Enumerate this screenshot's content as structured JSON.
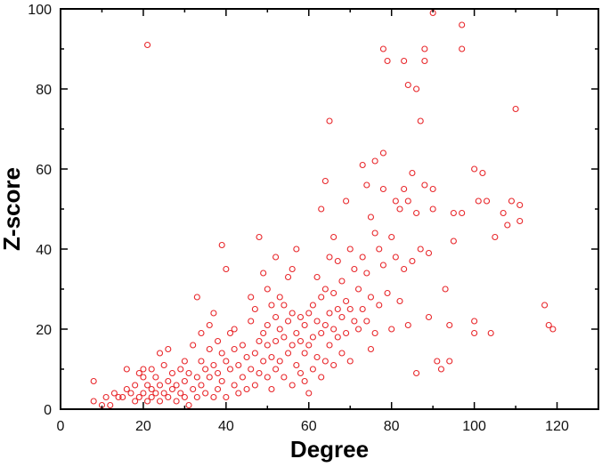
{
  "chart_data": {
    "type": "scatter",
    "title": "",
    "xlabel": "Degree",
    "ylabel": "Z-score",
    "xlim": [
      0,
      130
    ],
    "ylim": [
      0,
      100
    ],
    "xticks": [
      0,
      20,
      40,
      60,
      80,
      100,
      120
    ],
    "yticks": [
      0,
      20,
      40,
      60,
      80,
      100
    ],
    "xtick_labels": [
      "0",
      "20",
      "40",
      "60",
      "80",
      "100",
      "120"
    ],
    "ytick_labels": [
      "0",
      "20",
      "40",
      "60",
      "80",
      "100"
    ],
    "grid": false,
    "legend": "none",
    "marker": "open-circle",
    "color": "#e8262a",
    "points": [
      [
        8,
        7
      ],
      [
        8,
        2
      ],
      [
        10,
        1
      ],
      [
        11,
        3
      ],
      [
        12,
        1
      ],
      [
        13,
        4
      ],
      [
        14,
        3
      ],
      [
        15,
        3
      ],
      [
        16,
        5
      ],
      [
        16,
        10
      ],
      [
        17,
        4
      ],
      [
        18,
        6
      ],
      [
        18,
        2
      ],
      [
        19,
        9
      ],
      [
        19,
        3
      ],
      [
        20,
        10
      ],
      [
        20,
        8
      ],
      [
        20,
        4
      ],
      [
        21,
        6
      ],
      [
        21,
        2
      ],
      [
        21,
        91
      ],
      [
        22,
        10
      ],
      [
        22,
        5
      ],
      [
        22,
        3
      ],
      [
        23,
        8
      ],
      [
        23,
        4
      ],
      [
        24,
        14
      ],
      [
        24,
        6
      ],
      [
        24,
        2
      ],
      [
        25,
        11
      ],
      [
        25,
        4
      ],
      [
        26,
        15
      ],
      [
        26,
        7
      ],
      [
        26,
        3
      ],
      [
        27,
        9
      ],
      [
        27,
        5
      ],
      [
        28,
        6
      ],
      [
        28,
        2
      ],
      [
        29,
        10
      ],
      [
        29,
        4
      ],
      [
        30,
        12
      ],
      [
        30,
        7
      ],
      [
        30,
        3
      ],
      [
        31,
        9
      ],
      [
        31,
        1
      ],
      [
        32,
        16
      ],
      [
        32,
        5
      ],
      [
        33,
        28
      ],
      [
        33,
        8
      ],
      [
        33,
        3
      ],
      [
        34,
        19
      ],
      [
        34,
        12
      ],
      [
        34,
        6
      ],
      [
        35,
        10
      ],
      [
        35,
        4
      ],
      [
        36,
        21
      ],
      [
        36,
        15
      ],
      [
        36,
        8
      ],
      [
        37,
        24
      ],
      [
        37,
        11
      ],
      [
        37,
        3
      ],
      [
        38,
        17
      ],
      [
        38,
        9
      ],
      [
        38,
        5
      ],
      [
        39,
        41
      ],
      [
        39,
        14
      ],
      [
        39,
        7
      ],
      [
        40,
        35
      ],
      [
        40,
        12
      ],
      [
        40,
        3
      ],
      [
        41,
        19
      ],
      [
        41,
        10
      ],
      [
        42,
        20
      ],
      [
        42,
        15
      ],
      [
        42,
        6
      ],
      [
        43,
        11
      ],
      [
        43,
        4
      ],
      [
        44,
        16
      ],
      [
        44,
        8
      ],
      [
        45,
        13
      ],
      [
        45,
        5
      ],
      [
        46,
        28
      ],
      [
        46,
        22
      ],
      [
        46,
        10
      ],
      [
        47,
        25
      ],
      [
        47,
        14
      ],
      [
        47,
        6
      ],
      [
        48,
        43
      ],
      [
        48,
        17
      ],
      [
        48,
        9
      ],
      [
        49,
        34
      ],
      [
        49,
        19
      ],
      [
        49,
        12
      ],
      [
        50,
        30
      ],
      [
        50,
        21
      ],
      [
        50,
        16
      ],
      [
        50,
        8
      ],
      [
        51,
        26
      ],
      [
        51,
        13
      ],
      [
        51,
        5
      ],
      [
        52,
        38
      ],
      [
        52,
        23
      ],
      [
        52,
        17
      ],
      [
        52,
        10
      ],
      [
        53,
        28
      ],
      [
        53,
        20
      ],
      [
        53,
        12
      ],
      [
        54,
        26
      ],
      [
        54,
        18
      ],
      [
        54,
        8
      ],
      [
        55,
        33
      ],
      [
        55,
        22
      ],
      [
        55,
        14
      ],
      [
        56,
        35
      ],
      [
        56,
        24
      ],
      [
        56,
        16
      ],
      [
        56,
        6
      ],
      [
        57,
        40
      ],
      [
        57,
        19
      ],
      [
        57,
        11
      ],
      [
        58,
        23
      ],
      [
        58,
        17
      ],
      [
        58,
        9
      ],
      [
        59,
        21
      ],
      [
        59,
        14
      ],
      [
        59,
        7
      ],
      [
        60,
        24
      ],
      [
        60,
        16
      ],
      [
        60,
        4
      ],
      [
        61,
        26
      ],
      [
        61,
        18
      ],
      [
        61,
        10
      ],
      [
        62,
        33
      ],
      [
        62,
        22
      ],
      [
        62,
        13
      ],
      [
        63,
        50
      ],
      [
        63,
        28
      ],
      [
        63,
        19
      ],
      [
        63,
        8
      ],
      [
        64,
        57
      ],
      [
        64,
        30
      ],
      [
        64,
        21
      ],
      [
        64,
        12
      ],
      [
        65,
        72
      ],
      [
        65,
        38
      ],
      [
        65,
        24
      ],
      [
        65,
        16
      ],
      [
        66,
        43
      ],
      [
        66,
        29
      ],
      [
        66,
        20
      ],
      [
        66,
        11
      ],
      [
        67,
        37
      ],
      [
        67,
        25
      ],
      [
        67,
        18
      ],
      [
        68,
        32
      ],
      [
        68,
        23
      ],
      [
        68,
        14
      ],
      [
        69,
        52
      ],
      [
        69,
        27
      ],
      [
        69,
        19
      ],
      [
        70,
        40
      ],
      [
        70,
        25
      ],
      [
        70,
        12
      ],
      [
        71,
        35
      ],
      [
        71,
        22
      ],
      [
        72,
        30
      ],
      [
        72,
        20
      ],
      [
        73,
        61
      ],
      [
        73,
        38
      ],
      [
        73,
        25
      ],
      [
        74,
        56
      ],
      [
        74,
        34
      ],
      [
        74,
        22
      ],
      [
        75,
        48
      ],
      [
        75,
        28
      ],
      [
        75,
        15
      ],
      [
        76,
        62
      ],
      [
        76,
        44
      ],
      [
        76,
        19
      ],
      [
        77,
        40
      ],
      [
        77,
        26
      ],
      [
        78,
        90
      ],
      [
        78,
        64
      ],
      [
        78,
        55
      ],
      [
        78,
        36
      ],
      [
        79,
        87
      ],
      [
        79,
        29
      ],
      [
        80,
        43
      ],
      [
        80,
        20
      ],
      [
        81,
        52
      ],
      [
        81,
        38
      ],
      [
        82,
        50
      ],
      [
        82,
        27
      ],
      [
        83,
        87
      ],
      [
        83,
        55
      ],
      [
        83,
        35
      ],
      [
        84,
        81
      ],
      [
        84,
        52
      ],
      [
        84,
        21
      ],
      [
        85,
        59
      ],
      [
        85,
        37
      ],
      [
        86,
        80
      ],
      [
        86,
        49
      ],
      [
        86,
        9
      ],
      [
        87,
        72
      ],
      [
        87,
        40
      ],
      [
        88,
        90
      ],
      [
        88,
        87
      ],
      [
        88,
        56
      ],
      [
        89,
        39
      ],
      [
        89,
        23
      ],
      [
        90,
        99
      ],
      [
        90,
        55
      ],
      [
        90,
        50
      ],
      [
        91,
        12
      ],
      [
        92,
        10
      ],
      [
        93,
        30
      ],
      [
        94,
        21
      ],
      [
        94,
        12
      ],
      [
        95,
        49
      ],
      [
        95,
        42
      ],
      [
        97,
        96
      ],
      [
        97,
        90
      ],
      [
        97,
        49
      ],
      [
        100,
        60
      ],
      [
        100,
        22
      ],
      [
        100,
        19
      ],
      [
        101,
        52
      ],
      [
        102,
        59
      ],
      [
        103,
        52
      ],
      [
        104,
        19
      ],
      [
        105,
        43
      ],
      [
        107,
        49
      ],
      [
        108,
        46
      ],
      [
        109,
        52
      ],
      [
        110,
        75
      ],
      [
        111,
        51
      ],
      [
        111,
        47
      ],
      [
        117,
        26
      ],
      [
        118,
        21
      ],
      [
        119,
        20
      ]
    ]
  }
}
